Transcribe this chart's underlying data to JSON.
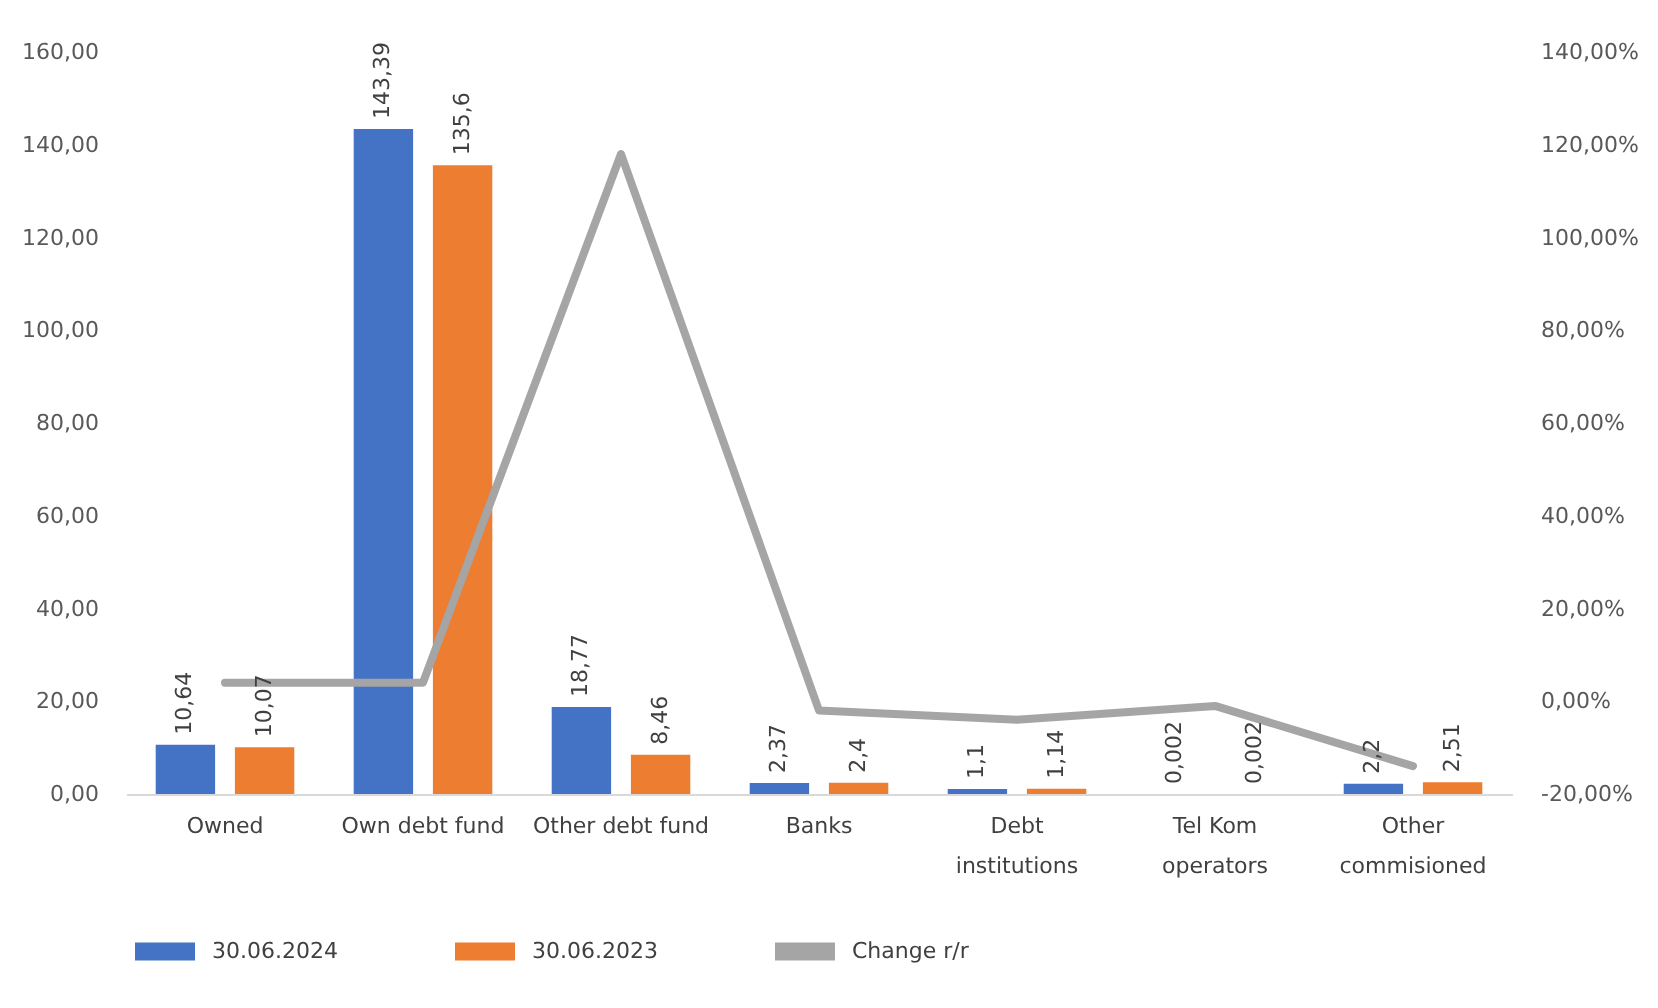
{
  "chart_data": {
    "type": "bar",
    "categories": [
      "Owned",
      "Own debt fund",
      "Other debt fund",
      "Banks",
      "Debt institutions",
      "Tel Kom operators",
      "Other commisioned"
    ],
    "series": [
      {
        "name": "30.06.2024",
        "color": "#4472c4",
        "values": [
          10.64,
          143.39,
          18.77,
          2.37,
          1.1,
          0.002,
          2.2
        ],
        "value_labels": [
          "10,64",
          "143,39",
          "18,77",
          "2,37",
          "1,1",
          "0,002",
          "2,2"
        ]
      },
      {
        "name": "30.06.2023",
        "color": "#ed7d31",
        "values": [
          10.07,
          135.6,
          8.46,
          2.4,
          1.14,
          0.002,
          2.51
        ],
        "value_labels": [
          "10,07",
          "135,6",
          "8,46",
          "2,4",
          "1,14",
          "0,002",
          "2,51"
        ]
      },
      {
        "name": "Change r/r",
        "type": "line",
        "axis": "y2",
        "color": "#a5a5a5",
        "values": [
          4,
          4,
          118,
          -2,
          -4,
          -1,
          -14
        ]
      }
    ],
    "ylim": [
      0,
      160
    ],
    "yticks": [
      {
        "value": 0,
        "label": "0,00"
      },
      {
        "value": 20,
        "label": "20,00"
      },
      {
        "value": 40,
        "label": "40,00"
      },
      {
        "value": 60,
        "label": "60,00"
      },
      {
        "value": 80,
        "label": "80,00"
      },
      {
        "value": 100,
        "label": "100,00"
      },
      {
        "value": 120,
        "label": "120,00"
      },
      {
        "value": 140,
        "label": "140,00"
      },
      {
        "value": 160,
        "label": "160,00"
      }
    ],
    "y2lim": [
      -20,
      140
    ],
    "y2ticks": [
      {
        "value": -20,
        "label": "-20,00%"
      },
      {
        "value": 0,
        "label": "0,00%"
      },
      {
        "value": 20,
        "label": "20,00%"
      },
      {
        "value": 40,
        "label": "40,00%"
      },
      {
        "value": 60,
        "label": "60,00%"
      },
      {
        "value": 80,
        "label": "80,00%"
      },
      {
        "value": 100,
        "label": "100,00%"
      },
      {
        "value": 120,
        "label": "120,00%"
      },
      {
        "value": 140,
        "label": "140,00%"
      }
    ],
    "grid": false,
    "legend": "bottom"
  }
}
